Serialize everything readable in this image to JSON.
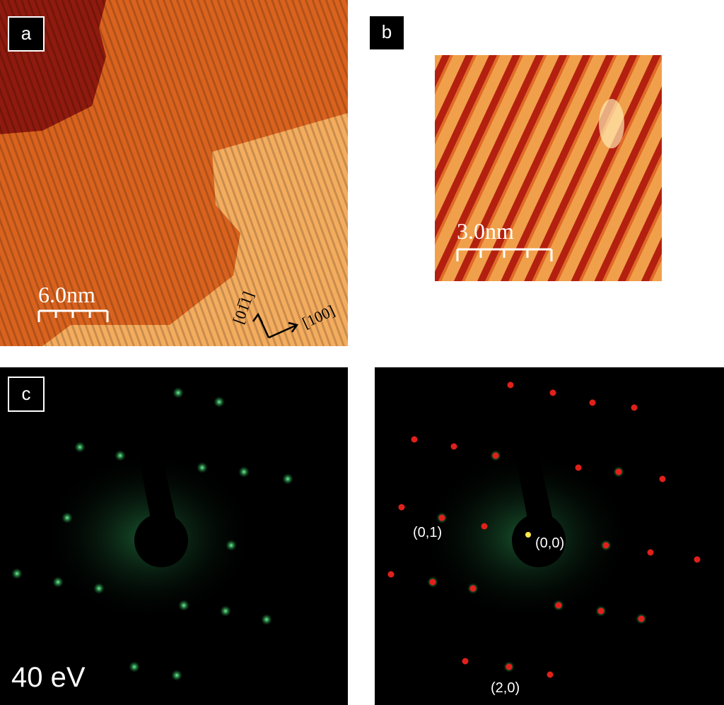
{
  "panels": {
    "a": {
      "label": "a",
      "scale_bar": "6.0nm",
      "direction_1": "[01̅1]",
      "direction_2": "[100]"
    },
    "b": {
      "label": "b",
      "scale_bar": "3.0nm"
    },
    "c": {
      "label": "c",
      "energy": "40 eV",
      "index_01": "(0,1)",
      "index_00": "(0,0)",
      "index_20": "(2,0)"
    }
  }
}
